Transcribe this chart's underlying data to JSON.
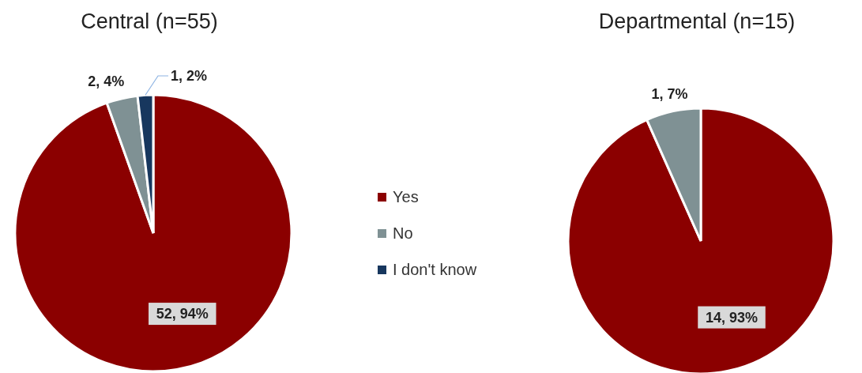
{
  "chart_data": [
    {
      "type": "pie",
      "title": "Central (n=55)",
      "categories": [
        "Yes",
        "No",
        "I don't know"
      ],
      "values": [
        52,
        2,
        1
      ],
      "colors": [
        "#8b0000",
        "#7f9194",
        "#17375e"
      ],
      "value_labels": [
        "52, 94%",
        "2, 4%",
        "1, 2%"
      ],
      "legend": "right"
    },
    {
      "type": "pie",
      "title": "Departmental (n=15)",
      "categories": [
        null,
        null
      ],
      "values": [
        14,
        1
      ],
      "colors": [
        "#8b0000",
        "#7f9194"
      ],
      "value_labels": [
        "14, 93%",
        "1, 7%"
      ]
    }
  ]
}
